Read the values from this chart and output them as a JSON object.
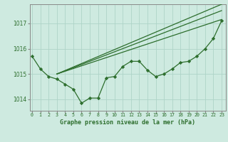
{
  "bg_color": "#ceeae0",
  "grid_color": "#aed4c8",
  "line_color": "#2d6e2d",
  "title": "Graphe pression niveau de la mer (hPa)",
  "xlabel_ticks": [
    "0",
    "1",
    "2",
    "3",
    "4",
    "5",
    "6",
    "7",
    "8",
    "9",
    "10",
    "11",
    "12",
    "13",
    "14",
    "15",
    "16",
    "17",
    "18",
    "19",
    "20",
    "21",
    "22",
    "23"
  ],
  "yticks": [
    1014,
    1015,
    1016,
    1017
  ],
  "ylim": [
    1013.55,
    1017.75
  ],
  "xlim": [
    -0.3,
    23.5
  ],
  "series_main": [
    1015.7,
    1015.2,
    1014.9,
    1014.8,
    1014.6,
    1014.4,
    1013.85,
    1014.05,
    1014.05,
    1014.85,
    1014.9,
    1015.3,
    1015.5,
    1015.5,
    1015.15,
    1014.9,
    1015.0,
    1015.2,
    1015.45,
    1015.5,
    1015.7,
    1016.0,
    1016.4,
    1017.1
  ],
  "trend_lines": [
    {
      "x0": 3,
      "y0": 1015.0,
      "x1": 23,
      "y1": 1017.15
    },
    {
      "x0": 3,
      "y0": 1015.0,
      "x1": 23,
      "y1": 1017.5
    },
    {
      "x0": 3,
      "y0": 1015.0,
      "x1": 23,
      "y1": 1017.75
    }
  ],
  "marker": "D",
  "markersize": 2.2,
  "linewidth": 0.9
}
